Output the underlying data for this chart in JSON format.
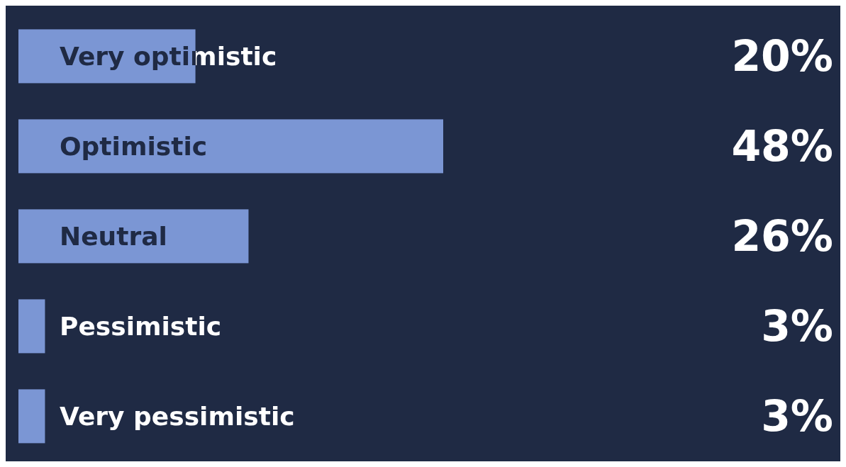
{
  "chart_data": {
    "type": "bar",
    "orientation": "horizontal",
    "categories": [
      "Very optimistic",
      "Optimistic",
      "Neutral",
      "Pessimistic",
      "Very pessimistic"
    ],
    "values": [
      20,
      48,
      26,
      3,
      3
    ],
    "value_labels": [
      "20%",
      "48%",
      "26%",
      "3%",
      "3%"
    ],
    "color": "#7b96d4"
  }
}
